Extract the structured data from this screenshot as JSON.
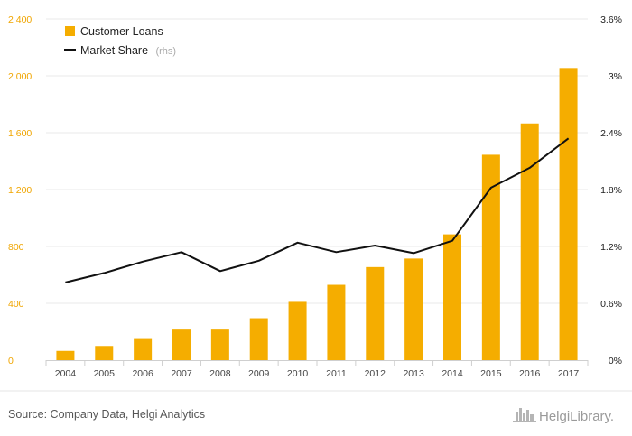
{
  "chart_data": {
    "type": "bar+line",
    "categories": [
      "2004",
      "2005",
      "2006",
      "2007",
      "2008",
      "2009",
      "2010",
      "2011",
      "2012",
      "2013",
      "2014",
      "2015",
      "2016",
      "2017"
    ],
    "series": [
      {
        "name": "Customer Loans",
        "type": "bar",
        "axis": "left",
        "color": "#f5ad00",
        "values": [
          65,
          100,
          155,
          215,
          215,
          295,
          410,
          530,
          655,
          715,
          885,
          1445,
          1665,
          2055
        ]
      },
      {
        "name": "Market Share",
        "type": "line",
        "axis": "right",
        "color": "#111111",
        "values": [
          0.82,
          0.92,
          1.04,
          1.14,
          0.94,
          1.05,
          1.24,
          1.14,
          1.21,
          1.13,
          1.26,
          1.82,
          2.03,
          2.34
        ]
      }
    ],
    "yleft": {
      "min": 0,
      "max": 2400,
      "ticks": [
        0,
        400,
        800,
        1200,
        1600,
        2000,
        2400
      ],
      "tick_labels": [
        "0",
        "400",
        "800",
        "1 200",
        "1 600",
        "2 000",
        "2 400"
      ]
    },
    "yright": {
      "min": 0,
      "max": 3.6,
      "ticks": [
        0,
        0.6,
        1.2,
        1.8,
        2.4,
        3.0,
        3.6
      ],
      "tick_labels": [
        "0%",
        "0.6%",
        "1.2%",
        "1.8%",
        "2.4%",
        "3%",
        "3.6%"
      ]
    },
    "grid": true,
    "legend": {
      "placement": "top-left",
      "items": [
        {
          "label": "Customer Loans",
          "suffix": ""
        },
        {
          "label": "Market Share",
          "suffix": "(rhs)"
        }
      ]
    }
  },
  "footer": {
    "source": "Source: Company Data, Helgi Analytics",
    "brand": "HelgiLibrary."
  }
}
